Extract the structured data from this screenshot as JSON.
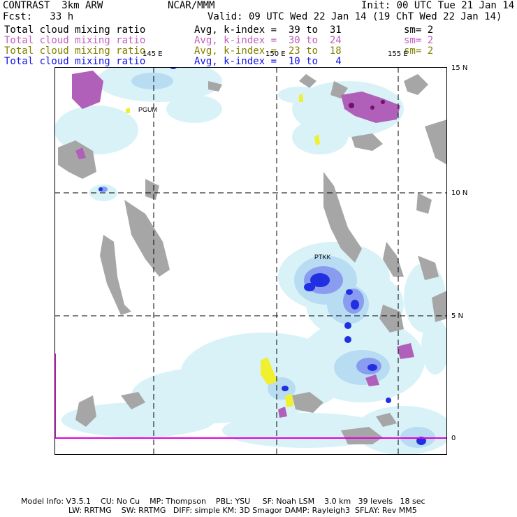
{
  "header": {
    "model": "CONTRAST  3km ARW",
    "org": "NCAR/MMM",
    "init": "Init: 00 UTC Tue 21 Jan 14",
    "forecast": "Fcst:   33 h",
    "valid": "Valid: 09 UTC Wed 22 Jan 14 (19 ChT Wed 22 Jan 14)"
  },
  "fields": [
    {
      "name": "Total cloud mixing ratio",
      "avg": "Avg, k-index =  39 to  31",
      "sm": "sm= 2",
      "color": "#000000"
    },
    {
      "name": "Total cloud mixing ratio",
      "avg": "Avg, k-index =  30 to  24",
      "sm": "sm= 2",
      "color": "#c060c0"
    },
    {
      "name": "Total cloud mixing ratio",
      "avg": "Avg, k-index =  23 to  18",
      "sm": "sm= 2",
      "color": "#808000"
    },
    {
      "name": "Total cloud mixing ratio",
      "avg": "Avg, k-index =  10 to   4",
      "sm": "",
      "color": "#1010ee"
    }
  ],
  "map": {
    "lon_labels": [
      "145 E",
      "150 E",
      "155 E"
    ],
    "lat_labels": [
      "15 N",
      "10 N",
      "5 N",
      "0"
    ],
    "stations": [
      "PGUM",
      "PTKK"
    ]
  },
  "footer": {
    "line1": "Model Info: V3.5.1    CU: No Cu    MP: Thompson    PBL: YSU     SF: Noah LSM    3.0 km   39 levels   18 sec",
    "line2": "LW: RRTMG    SW: RRTMG   DIFF: simple KM: 3D Smagor DAMP: Rayleigh3  SFLAY: Rev MM5"
  }
}
